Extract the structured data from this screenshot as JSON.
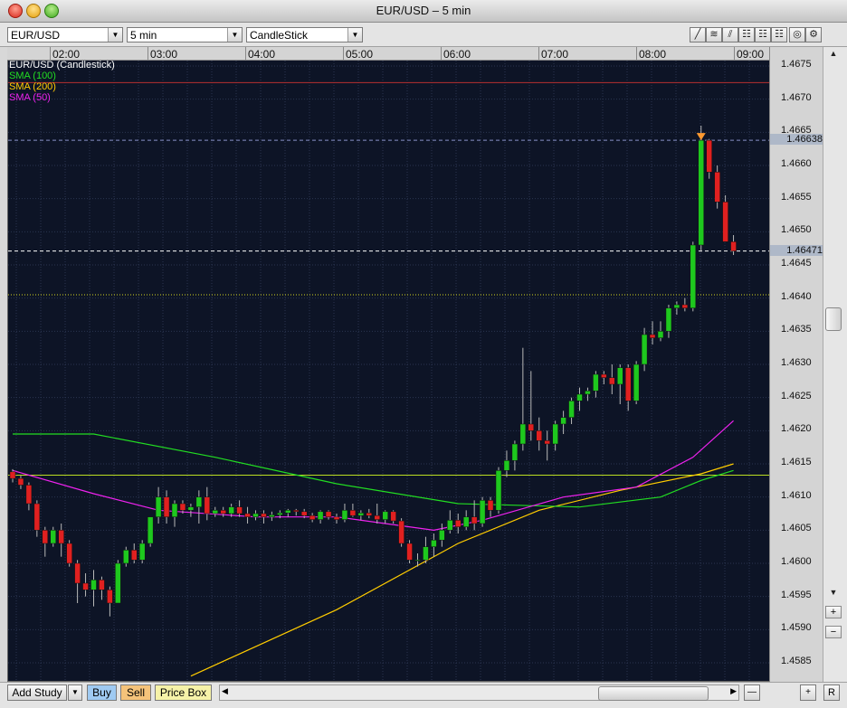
{
  "window": {
    "title": "EUR/USD – 5 min"
  },
  "toolbar": {
    "symbol": "EUR/USD",
    "interval": "5 min",
    "chart_style": "CandleStick",
    "tools": [
      "line-tool-icon",
      "fib-tool-icon",
      "channel-tool-icon",
      "grid-a-icon",
      "grid-b-icon",
      "grid-c-icon",
      "zoom-icon",
      "settings-icon"
    ]
  },
  "legend": {
    "main": "EUR/USD (Candlestick)",
    "items": [
      {
        "label": "SMA (100)",
        "color": "#22dd22"
      },
      {
        "label": "SMA (200)",
        "color": "#ffcc00"
      },
      {
        "label": "SMA (50)",
        "color": "#ee22ee"
      }
    ]
  },
  "time_labels": [
    "02:00",
    "03:00",
    "04:00",
    "05:00",
    "06:00",
    "07:00",
    "08:00",
    "09:00"
  ],
  "price_labels": [
    "1.4675",
    "1.4670",
    "1.4665",
    "1.4660",
    "1.4655",
    "1.4650",
    "1.4645",
    "1.4640",
    "1.4635",
    "1.4630",
    "1.4625",
    "1.4620",
    "1.4615",
    "1.4610",
    "1.4605",
    "1.4600",
    "1.4595",
    "1.4590",
    "1.4585"
  ],
  "markers": {
    "high_price": "1.46638",
    "last_price": "1.46471"
  },
  "bottom": {
    "add_study": "Add Study",
    "buy": "Buy",
    "sell": "Sell",
    "price_box": "Price Box",
    "reset": "R"
  },
  "colors": {
    "background": "#0d1426",
    "grid": "#2a3550",
    "up": "#1ec81e",
    "down": "#e02020"
  },
  "chart_data": {
    "type": "candlestick",
    "title": "EUR/USD (Candlestick)",
    "interval": "5 min",
    "ylim": [
      1.4582,
      1.4678
    ],
    "ohlc": [
      [
        1.46138,
        1.46142,
        1.46122,
        1.46128
      ],
      [
        1.46128,
        1.46132,
        1.46112,
        1.46118
      ],
      [
        1.46118,
        1.46122,
        1.4608,
        1.4609
      ],
      [
        1.4609,
        1.46095,
        1.4604,
        1.4605
      ],
      [
        1.4605,
        1.46055,
        1.4601,
        1.4603
      ],
      [
        1.4603,
        1.46055,
        1.46025,
        1.4605
      ],
      [
        1.4605,
        1.4606,
        1.4601,
        1.4603
      ],
      [
        1.4603,
        1.46035,
        1.45995,
        1.46
      ],
      [
        1.46,
        1.46005,
        1.4594,
        1.4597
      ],
      [
        1.4597,
        1.45985,
        1.4595,
        1.4596
      ],
      [
        1.4596,
        1.4599,
        1.45935,
        1.45975
      ],
      [
        1.45975,
        1.4598,
        1.45945,
        1.4596
      ],
      [
        1.4596,
        1.45965,
        1.4592,
        1.4594
      ],
      [
        1.4594,
        1.46005,
        1.4594,
        1.46
      ],
      [
        1.46,
        1.46025,
        1.45995,
        1.4602
      ],
      [
        1.4602,
        1.4603,
        1.46,
        1.46005
      ],
      [
        1.46005,
        1.46035,
        1.46,
        1.4603
      ],
      [
        1.4603,
        1.4607,
        1.46025,
        1.4607
      ],
      [
        1.4607,
        1.46115,
        1.4606,
        1.461
      ],
      [
        1.461,
        1.4611,
        1.4606,
        1.4607
      ],
      [
        1.4607,
        1.46095,
        1.46055,
        1.4609
      ],
      [
        1.4609,
        1.46095,
        1.46075,
        1.4608
      ],
      [
        1.4608,
        1.4609,
        1.4607,
        1.46085
      ],
      [
        1.46085,
        1.4611,
        1.4606,
        1.461
      ],
      [
        1.461,
        1.46115,
        1.46065,
        1.46075
      ],
      [
        1.46075,
        1.46085,
        1.4607,
        1.4608
      ],
      [
        1.4608,
        1.46085,
        1.4607,
        1.46075
      ],
      [
        1.46075,
        1.4609,
        1.4607,
        1.46085
      ],
      [
        1.46085,
        1.46095,
        1.4607,
        1.46075
      ],
      [
        1.46075,
        1.46085,
        1.4606,
        1.4607
      ],
      [
        1.4607,
        1.4608,
        1.46065,
        1.46075
      ],
      [
        1.46075,
        1.4608,
        1.4606,
        1.4607
      ],
      [
        1.4607,
        1.46078,
        1.46064,
        1.46073
      ],
      [
        1.46073,
        1.4608,
        1.46068,
        1.46076
      ],
      [
        1.46076,
        1.46082,
        1.4607,
        1.4608
      ],
      [
        1.4608,
        1.46082,
        1.46072,
        1.46078
      ],
      [
        1.46078,
        1.46082,
        1.46068,
        1.46072
      ],
      [
        1.46072,
        1.46076,
        1.46062,
        1.46066
      ],
      [
        1.46066,
        1.4608,
        1.4606,
        1.46078
      ],
      [
        1.46078,
        1.4608,
        1.46066,
        1.4607
      ],
      [
        1.4607,
        1.46075,
        1.4606,
        1.46066
      ],
      [
        1.46066,
        1.4609,
        1.46062,
        1.4608
      ],
      [
        1.4608,
        1.4609,
        1.4607,
        1.46072
      ],
      [
        1.46072,
        1.4608,
        1.46065,
        1.46076
      ],
      [
        1.46076,
        1.46082,
        1.46068,
        1.46072
      ],
      [
        1.46072,
        1.4609,
        1.4606,
        1.46066
      ],
      [
        1.46066,
        1.4608,
        1.4606,
        1.46078
      ],
      [
        1.46078,
        1.4608,
        1.4606,
        1.46064
      ],
      [
        1.46064,
        1.46068,
        1.46025,
        1.4603
      ],
      [
        1.4603,
        1.46035,
        1.46,
        1.46005
      ],
      [
        1.46005,
        1.46015,
        1.45995,
        1.46005
      ],
      [
        1.46005,
        1.4604,
        1.46,
        1.46025
      ],
      [
        1.46025,
        1.46045,
        1.4601,
        1.46035
      ],
      [
        1.46035,
        1.4606,
        1.46025,
        1.4605
      ],
      [
        1.4605,
        1.4608,
        1.46045,
        1.46065
      ],
      [
        1.46065,
        1.46075,
        1.46045,
        1.46055
      ],
      [
        1.46055,
        1.4608,
        1.4605,
        1.4607
      ],
      [
        1.4607,
        1.46095,
        1.4605,
        1.4606
      ],
      [
        1.4606,
        1.461,
        1.46055,
        1.46095
      ],
      [
        1.46095,
        1.461,
        1.4607,
        1.4608
      ],
      [
        1.4608,
        1.46145,
        1.46075,
        1.4614
      ],
      [
        1.4614,
        1.4617,
        1.4613,
        1.46155
      ],
      [
        1.46155,
        1.46185,
        1.4614,
        1.4618
      ],
      [
        1.4618,
        1.46325,
        1.4617,
        1.4621
      ],
      [
        1.4621,
        1.4629,
        1.46185,
        1.462
      ],
      [
        1.462,
        1.4622,
        1.4617,
        1.46185
      ],
      [
        1.46185,
        1.462,
        1.46155,
        1.4618
      ],
      [
        1.4618,
        1.46215,
        1.4617,
        1.4621
      ],
      [
        1.4621,
        1.4623,
        1.46195,
        1.4622
      ],
      [
        1.4622,
        1.4625,
        1.4621,
        1.46245
      ],
      [
        1.46245,
        1.46265,
        1.4623,
        1.46255
      ],
      [
        1.46255,
        1.46265,
        1.46245,
        1.4626
      ],
      [
        1.4626,
        1.4629,
        1.4625,
        1.46285
      ],
      [
        1.46285,
        1.4629,
        1.4627,
        1.4628
      ],
      [
        1.4628,
        1.463,
        1.46255,
        1.4627
      ],
      [
        1.4627,
        1.463,
        1.4624,
        1.46295
      ],
      [
        1.46295,
        1.463,
        1.4623,
        1.46245
      ],
      [
        1.46245,
        1.46305,
        1.4624,
        1.463
      ],
      [
        1.463,
        1.46355,
        1.4629,
        1.46345
      ],
      [
        1.46345,
        1.46365,
        1.4633,
        1.4634
      ],
      [
        1.4634,
        1.46365,
        1.46335,
        1.4635
      ],
      [
        1.4635,
        1.4639,
        1.4634,
        1.46385
      ],
      [
        1.46385,
        1.46395,
        1.46375,
        1.4639
      ],
      [
        1.4639,
        1.464,
        1.4638,
        1.46385
      ],
      [
        1.46385,
        1.46485,
        1.4638,
        1.4648
      ],
      [
        1.4648,
        1.4666,
        1.4647,
        1.46638
      ],
      [
        1.46638,
        1.4664,
        1.4658,
        1.4659
      ],
      [
        1.4659,
        1.466,
        1.46535,
        1.46545
      ],
      [
        1.46545,
        1.46555,
        1.4649,
        1.46485
      ],
      [
        1.46485,
        1.46495,
        1.46465,
        1.46471
      ]
    ],
    "sma_100": [
      [
        0,
        1.46195
      ],
      [
        10,
        1.46195
      ],
      [
        25,
        1.4616
      ],
      [
        40,
        1.4612
      ],
      [
        55,
        1.4609
      ],
      [
        70,
        1.46085
      ],
      [
        80,
        1.461
      ],
      [
        85,
        1.46125
      ],
      [
        89,
        1.4614
      ]
    ],
    "sma_200": [
      [
        22,
        1.4583
      ],
      [
        40,
        1.4593
      ],
      [
        55,
        1.4603
      ],
      [
        65,
        1.4608
      ],
      [
        75,
        1.4611
      ],
      [
        85,
        1.46135
      ],
      [
        89,
        1.4615
      ]
    ],
    "sma_50": [
      [
        0,
        1.4614
      ],
      [
        10,
        1.46105
      ],
      [
        18,
        1.4608
      ],
      [
        30,
        1.4607
      ],
      [
        40,
        1.4607
      ],
      [
        52,
        1.4605
      ],
      [
        58,
        1.46065
      ],
      [
        68,
        1.461
      ],
      [
        77,
        1.46115
      ],
      [
        84,
        1.4616
      ],
      [
        89,
        1.46215
      ]
    ],
    "horizontal_lines": [
      {
        "price": 1.46725,
        "color": "#b83030",
        "style": "solid"
      },
      {
        "price": 1.46638,
        "color": "#8890c8",
        "style": "dashed"
      },
      {
        "price": 1.46471,
        "color": "#ffffff",
        "style": "dashed"
      },
      {
        "price": 1.46405,
        "color": "#d8d820",
        "style": "dotted"
      },
      {
        "price": 1.46133,
        "color": "#bbdd22",
        "style": "solid"
      }
    ]
  }
}
